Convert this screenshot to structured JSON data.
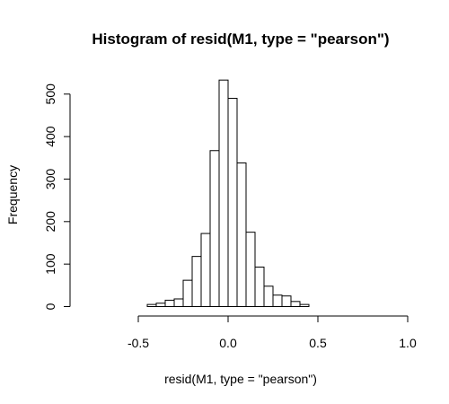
{
  "chart_data": {
    "type": "bar",
    "title": "Histogram of resid(M1, type = \"pearson\")",
    "xlabel": "resid(M1, type = \"pearson\")",
    "ylabel": "Frequency",
    "xlim": [
      -0.8,
      0.95
    ],
    "ylim": [
      0,
      535
    ],
    "bin_width": 0.05,
    "x_ticks": [
      -0.5,
      0.0,
      0.5,
      1.0
    ],
    "x_tick_labels": [
      "-0.5",
      "0.0",
      "0.5",
      "1.0"
    ],
    "y_ticks": [
      0,
      100,
      200,
      300,
      400,
      500
    ],
    "y_tick_labels": [
      "0",
      "100",
      "200",
      "300",
      "400",
      "500"
    ],
    "bins": [
      {
        "x0": -0.8,
        "x1": -0.75,
        "count": 0
      },
      {
        "x0": -0.75,
        "x1": -0.7,
        "count": 0
      },
      {
        "x0": -0.7,
        "x1": -0.65,
        "count": 0
      },
      {
        "x0": -0.65,
        "x1": -0.6,
        "count": 0
      },
      {
        "x0": -0.6,
        "x1": -0.55,
        "count": 0
      },
      {
        "x0": -0.55,
        "x1": -0.5,
        "count": 0
      },
      {
        "x0": -0.5,
        "x1": -0.45,
        "count": 0
      },
      {
        "x0": -0.45,
        "x1": -0.4,
        "count": 5
      },
      {
        "x0": -0.4,
        "x1": -0.35,
        "count": 8
      },
      {
        "x0": -0.35,
        "x1": -0.3,
        "count": 15
      },
      {
        "x0": -0.3,
        "x1": -0.25,
        "count": 18
      },
      {
        "x0": -0.25,
        "x1": -0.2,
        "count": 62
      },
      {
        "x0": -0.2,
        "x1": -0.15,
        "count": 118
      },
      {
        "x0": -0.15,
        "x1": -0.1,
        "count": 172
      },
      {
        "x0": -0.1,
        "x1": -0.05,
        "count": 367
      },
      {
        "x0": -0.05,
        "x1": 0.0,
        "count": 533
      },
      {
        "x0": 0.0,
        "x1": 0.05,
        "count": 490
      },
      {
        "x0": 0.05,
        "x1": 0.1,
        "count": 338
      },
      {
        "x0": 0.1,
        "x1": 0.15,
        "count": 175
      },
      {
        "x0": 0.15,
        "x1": 0.2,
        "count": 93
      },
      {
        "x0": 0.2,
        "x1": 0.25,
        "count": 48
      },
      {
        "x0": 0.25,
        "x1": 0.3,
        "count": 27
      },
      {
        "x0": 0.3,
        "x1": 0.35,
        "count": 25
      },
      {
        "x0": 0.35,
        "x1": 0.4,
        "count": 12
      },
      {
        "x0": 0.4,
        "x1": 0.45,
        "count": 5
      },
      {
        "x0": 0.45,
        "x1": 0.5,
        "count": 0
      },
      {
        "x0": 0.5,
        "x1": 0.55,
        "count": 0
      },
      {
        "x0": 0.55,
        "x1": 0.6,
        "count": 0
      },
      {
        "x0": 0.6,
        "x1": 0.65,
        "count": 0
      },
      {
        "x0": 0.65,
        "x1": 0.7,
        "count": 0
      },
      {
        "x0": 0.7,
        "x1": 0.75,
        "count": 0
      },
      {
        "x0": 0.75,
        "x1": 0.8,
        "count": 0
      },
      {
        "x0": 0.8,
        "x1": 0.85,
        "count": 0
      },
      {
        "x0": 0.85,
        "x1": 0.9,
        "count": 0
      },
      {
        "x0": 0.9,
        "x1": 0.95,
        "count": 0
      }
    ]
  }
}
